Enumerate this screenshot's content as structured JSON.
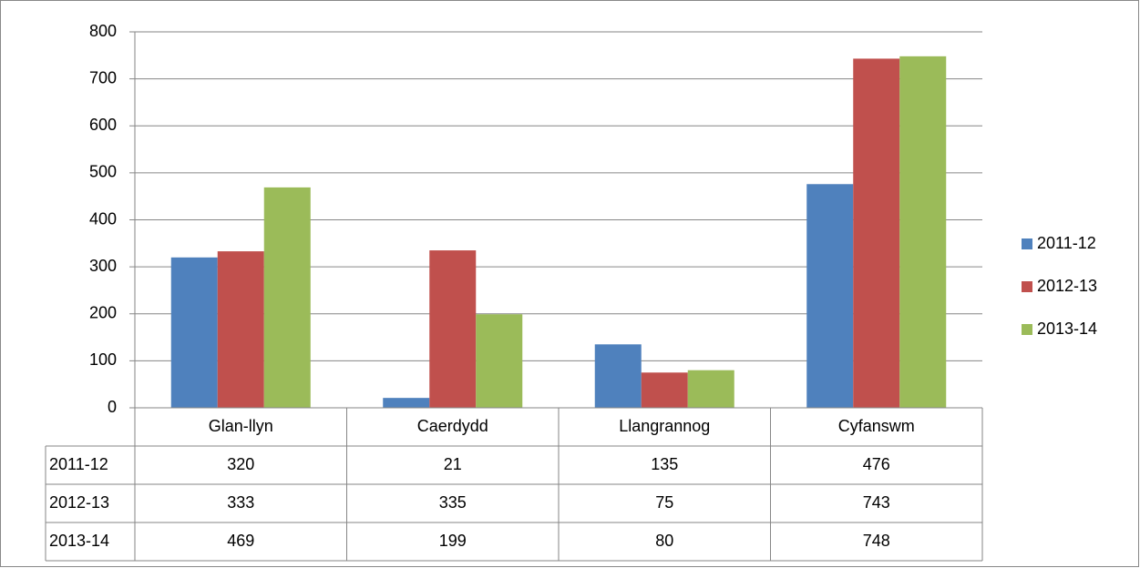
{
  "chart_data": {
    "type": "bar",
    "categories": [
      "Glan-llyn",
      "Caerdydd",
      "Llangrannog",
      "Cyfanswm"
    ],
    "series": [
      {
        "name": "2011-12",
        "color": "#4f81bd",
        "values": [
          320,
          21,
          135,
          476
        ]
      },
      {
        "name": "2012-13",
        "color": "#c0504d",
        "values": [
          333,
          335,
          75,
          743
        ]
      },
      {
        "name": "2013-14",
        "color": "#9bbb59",
        "values": [
          469,
          199,
          80,
          748
        ]
      }
    ],
    "ylim": [
      0,
      800
    ],
    "yticks": [
      0,
      100,
      200,
      300,
      400,
      500,
      600,
      700,
      800
    ],
    "grid": true,
    "legend": "right",
    "data_table": true
  }
}
